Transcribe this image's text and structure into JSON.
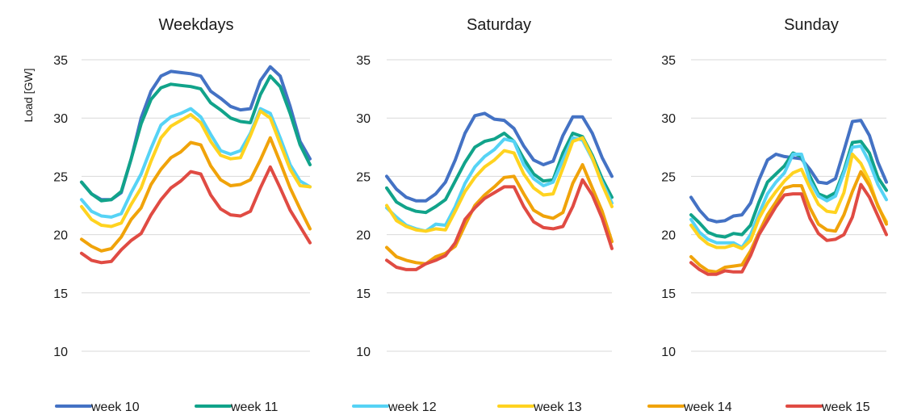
{
  "chart_data": {
    "type": "line",
    "ylabel": "Load [GW]",
    "ylim": [
      10,
      35
    ],
    "yticks": [
      10,
      15,
      20,
      25,
      30,
      35
    ],
    "grid": true,
    "legend_position": "bottom",
    "colors": [
      "#4472c4",
      "#11a38a",
      "#56d3f5",
      "#ffd320",
      "#f0a30a",
      "#e04b43"
    ],
    "series_names": [
      "week 10",
      "week 11",
      "week 12",
      "week 13",
      "week 14",
      "week 15"
    ],
    "panels": [
      {
        "title": "Weekdays",
        "x": [
          1,
          2,
          3,
          4,
          5,
          6,
          7,
          8,
          9,
          10,
          11,
          12,
          13,
          14,
          15,
          16,
          17,
          18,
          19,
          20,
          21,
          22,
          23,
          24
        ],
        "series": [
          {
            "name": "week 10",
            "values": [
              24.5,
              23.5,
              23.0,
              23.0,
              23.6,
              26.5,
              30.0,
              32.3,
              33.6,
              34.0,
              33.9,
              33.8,
              33.6,
              32.3,
              31.7,
              31.0,
              30.7,
              30.8,
              33.2,
              34.4,
              33.6,
              31.0,
              28.0,
              26.5
            ]
          },
          {
            "name": "week 11",
            "values": [
              24.5,
              23.5,
              22.9,
              23.0,
              23.7,
              26.5,
              29.5,
              31.6,
              32.6,
              32.9,
              32.8,
              32.7,
              32.5,
              31.3,
              30.7,
              30.0,
              29.7,
              29.6,
              32.0,
              33.6,
              32.7,
              30.4,
              27.7,
              26.0
            ]
          },
          {
            "name": "week 12",
            "values": [
              23.0,
              22.0,
              21.6,
              21.5,
              21.8,
              23.6,
              25.2,
              27.4,
              29.4,
              30.1,
              30.4,
              30.8,
              30.1,
              28.6,
              27.2,
              26.9,
              27.2,
              28.7,
              30.8,
              30.4,
              28.3,
              26.0,
              24.6,
              24.1
            ]
          },
          {
            "name": "week 13",
            "values": [
              22.4,
              21.3,
              20.8,
              20.7,
              21.0,
              22.6,
              24.0,
              26.3,
              28.3,
              29.3,
              29.8,
              30.3,
              29.6,
              28.0,
              26.8,
              26.5,
              26.6,
              28.5,
              30.6,
              30.0,
              27.8,
              25.6,
              24.2,
              24.1
            ]
          },
          {
            "name": "week 14",
            "values": [
              19.6,
              19.0,
              18.6,
              18.8,
              19.8,
              21.3,
              22.3,
              24.3,
              25.6,
              26.6,
              27.1,
              27.9,
              27.7,
              25.9,
              24.7,
              24.2,
              24.3,
              24.7,
              26.4,
              28.3,
              26.2,
              24.0,
              22.2,
              20.5
            ]
          },
          {
            "name": "week 15",
            "values": [
              18.4,
              17.8,
              17.6,
              17.7,
              18.7,
              19.5,
              20.1,
              21.7,
              23.0,
              24.0,
              24.6,
              25.4,
              25.2,
              23.4,
              22.2,
              21.7,
              21.6,
              22.0,
              24.0,
              25.8,
              24.0,
              22.1,
              20.7,
              19.3
            ]
          }
        ]
      },
      {
        "title": "Saturday",
        "x": [
          1,
          2,
          3,
          4,
          5,
          6,
          7,
          8,
          9,
          10,
          11,
          12,
          13,
          14,
          15,
          16,
          17,
          18,
          19,
          20,
          21,
          22,
          23,
          24
        ],
        "series": [
          {
            "name": "week 10",
            "values": [
              25.0,
              23.9,
              23.2,
              22.9,
              22.9,
              23.5,
              24.5,
              26.4,
              28.7,
              30.2,
              30.4,
              29.9,
              29.8,
              29.1,
              27.6,
              26.4,
              26.0,
              26.3,
              28.5,
              30.1,
              30.1,
              28.7,
              26.6,
              25.0
            ]
          },
          {
            "name": "week 11",
            "values": [
              24.0,
              22.8,
              22.3,
              22.0,
              21.9,
              22.4,
              23.0,
              24.6,
              26.2,
              27.5,
              28.0,
              28.2,
              28.7,
              28.0,
              26.5,
              25.2,
              24.6,
              24.7,
              27.0,
              28.7,
              28.4,
              26.8,
              24.8,
              23.2
            ]
          },
          {
            "name": "week 12",
            "values": [
              22.3,
              21.5,
              20.8,
              20.5,
              20.3,
              20.9,
              20.8,
              22.4,
              24.4,
              25.8,
              26.7,
              27.3,
              28.2,
              28.0,
              26.0,
              24.8,
              24.2,
              24.5,
              26.4,
              28.3,
              28.1,
              26.5,
              24.5,
              22.7
            ]
          },
          {
            "name": "week 13",
            "values": [
              22.5,
              21.2,
              20.7,
              20.4,
              20.3,
              20.5,
              20.4,
              22.0,
              23.7,
              24.9,
              25.8,
              26.4,
              27.2,
              27.0,
              25.2,
              24.0,
              23.4,
              23.5,
              25.7,
              28.0,
              28.3,
              26.6,
              24.3,
              22.4
            ]
          },
          {
            "name": "week 14",
            "values": [
              18.9,
              18.1,
              17.8,
              17.6,
              17.5,
              18.1,
              18.4,
              19.0,
              20.8,
              22.5,
              23.4,
              24.1,
              24.9,
              25.0,
              23.5,
              22.1,
              21.6,
              21.4,
              21.9,
              24.4,
              26.0,
              24.0,
              22.0,
              19.4
            ]
          },
          {
            "name": "week 15",
            "values": [
              17.8,
              17.2,
              17.0,
              17.0,
              17.5,
              17.8,
              18.2,
              19.3,
              21.3,
              22.3,
              23.1,
              23.6,
              24.1,
              24.1,
              22.4,
              21.1,
              20.6,
              20.5,
              20.7,
              22.4,
              24.7,
              23.4,
              21.4,
              18.8
            ]
          }
        ]
      },
      {
        "title": "Sunday",
        "x": [
          1,
          2,
          3,
          4,
          5,
          6,
          7,
          8,
          9,
          10,
          11,
          12,
          13,
          14,
          15,
          16,
          17,
          18,
          19,
          20,
          21,
          22,
          23,
          24
        ],
        "series": [
          {
            "name": "week 10",
            "values": [
              23.2,
              22.1,
              21.3,
              21.1,
              21.2,
              21.6,
              21.7,
              22.7,
              24.7,
              26.4,
              26.9,
              26.7,
              26.6,
              26.5,
              25.6,
              24.5,
              24.4,
              24.8,
              27.2,
              29.7,
              29.8,
              28.5,
              26.2,
              24.5
            ]
          },
          {
            "name": "week 11",
            "values": [
              21.7,
              21.0,
              20.2,
              19.9,
              19.8,
              20.1,
              20.0,
              20.8,
              22.8,
              24.5,
              25.2,
              25.9,
              27.0,
              26.7,
              25.0,
              23.5,
              23.2,
              23.6,
              25.5,
              27.9,
              28.0,
              27.0,
              24.9,
              23.8
            ]
          },
          {
            "name": "week 12",
            "values": [
              21.3,
              20.2,
              19.6,
              19.3,
              19.3,
              19.3,
              18.9,
              20.0,
              21.8,
              23.5,
              24.5,
              25.3,
              26.9,
              26.9,
              24.6,
              23.3,
              22.9,
              23.3,
              25.3,
              27.5,
              27.6,
              26.2,
              24.3,
              23.0
            ]
          },
          {
            "name": "week 13",
            "values": [
              20.8,
              19.8,
              19.2,
              18.9,
              18.9,
              19.1,
              18.8,
              19.5,
              21.4,
              22.7,
              23.7,
              24.6,
              25.3,
              25.6,
              24.0,
              22.6,
              22.0,
              21.9,
              23.6,
              26.9,
              26.1,
              24.6,
              22.4,
              21.1
            ]
          },
          {
            "name": "week 14",
            "values": [
              18.1,
              17.4,
              16.9,
              16.8,
              17.2,
              17.3,
              17.4,
              18.6,
              20.2,
              21.7,
              22.8,
              24.0,
              24.2,
              24.2,
              22.3,
              20.9,
              20.4,
              20.3,
              21.7,
              23.7,
              25.4,
              24.2,
              22.5,
              20.9
            ]
          },
          {
            "name": "week 15",
            "values": [
              17.6,
              17.0,
              16.6,
              16.6,
              16.9,
              16.8,
              16.8,
              18.2,
              20.0,
              21.2,
              22.4,
              23.4,
              23.5,
              23.5,
              21.4,
              20.1,
              19.5,
              19.6,
              20.0,
              21.5,
              24.3,
              23.2,
              21.6,
              20.0
            ]
          }
        ]
      }
    ]
  }
}
